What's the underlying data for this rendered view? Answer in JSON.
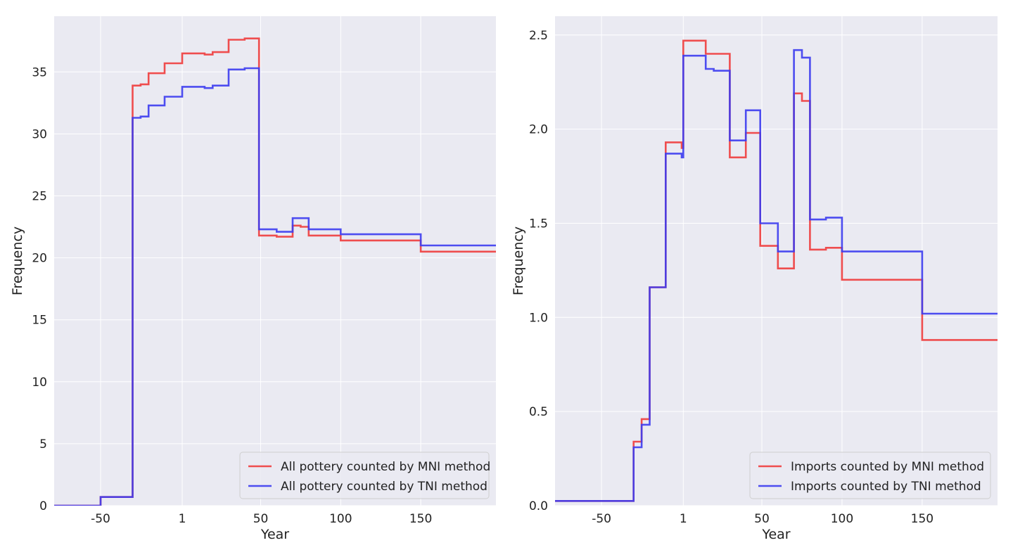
{
  "chart_data": [
    {
      "type": "line",
      "xlabel": "Year",
      "ylabel": "Frequency",
      "xlim": [
        -79,
        197
      ],
      "ylim": [
        0,
        39.5
      ],
      "xticks": [
        -50,
        1,
        50,
        100,
        150
      ],
      "xtick_labels": [
        "-50",
        "1",
        "50",
        "100",
        "150"
      ],
      "yticks": [
        0,
        5,
        10,
        15,
        20,
        25,
        30,
        35
      ],
      "yticks_labels": [
        "0",
        "5",
        "10",
        "15",
        "20",
        "25",
        "30",
        "35"
      ],
      "grid": true,
      "legend_position": "lower-right",
      "series": [
        {
          "name": "All pottery counted by MNI method",
          "color": "#f03c3c",
          "x": [
            -79,
            -50,
            -50,
            -30,
            -30,
            -25,
            -25,
            -20,
            -20,
            -10,
            -10,
            1,
            1,
            15,
            15,
            20,
            20,
            30,
            30,
            40,
            40,
            49,
            49,
            60,
            60,
            70,
            70,
            75,
            75,
            80,
            80,
            100,
            100,
            150,
            150,
            197
          ],
          "y": [
            0,
            0,
            0.7,
            0.7,
            33.9,
            33.9,
            34.0,
            34.0,
            34.9,
            34.9,
            35.7,
            35.7,
            36.5,
            36.5,
            36.4,
            36.4,
            36.6,
            36.6,
            37.6,
            37.6,
            37.7,
            37.7,
            21.8,
            21.8,
            21.7,
            21.7,
            22.6,
            22.6,
            22.5,
            22.5,
            21.8,
            21.8,
            21.4,
            21.4,
            20.5,
            20.5
          ]
        },
        {
          "name": "All pottery counted by TNI method",
          "color": "#3c3cf0",
          "x": [
            -79,
            -50,
            -50,
            -30,
            -30,
            -25,
            -25,
            -20,
            -20,
            -10,
            -10,
            1,
            1,
            15,
            15,
            20,
            20,
            30,
            30,
            40,
            40,
            49,
            49,
            60,
            60,
            70,
            70,
            80,
            80,
            100,
            100,
            150,
            150,
            197
          ],
          "y": [
            0,
            0,
            0.7,
            0.7,
            31.3,
            31.3,
            31.4,
            31.4,
            32.3,
            32.3,
            33.0,
            33.0,
            33.8,
            33.8,
            33.7,
            33.7,
            33.9,
            33.9,
            35.2,
            35.2,
            35.3,
            35.3,
            22.3,
            22.3,
            22.1,
            22.1,
            23.2,
            23.2,
            22.3,
            22.3,
            21.9,
            21.9,
            21.0,
            21.0
          ]
        }
      ]
    },
    {
      "type": "line",
      "xlabel": "Year",
      "ylabel": "Frequency",
      "xlim": [
        -79,
        197
      ],
      "ylim": [
        0,
        2.6
      ],
      "xticks": [
        -50,
        1,
        50,
        100,
        150
      ],
      "xtick_labels": [
        "-50",
        "1",
        "50",
        "100",
        "150"
      ],
      "yticks": [
        0,
        0.5,
        1.0,
        1.5,
        2.0,
        2.5
      ],
      "yticks_labels": [
        "0.0",
        "0.5",
        "1.0",
        "1.5",
        "2.0",
        "2.5"
      ],
      "grid": true,
      "legend_position": "lower-right",
      "series": [
        {
          "name": "Imports counted by MNI method",
          "color": "#f03c3c",
          "x": [
            -79,
            -30,
            -30,
            -25,
            -25,
            -20,
            -20,
            -10,
            -10,
            0,
            0,
            1,
            1,
            15,
            15,
            20,
            20,
            30,
            30,
            40,
            40,
            49,
            49,
            60,
            60,
            70,
            70,
            75,
            75,
            80,
            80,
            90,
            90,
            100,
            100,
            150,
            150,
            197
          ],
          "y": [
            0.025,
            0.025,
            0.34,
            0.34,
            0.46,
            0.46,
            1.16,
            1.16,
            1.93,
            1.93,
            1.9,
            1.9,
            2.47,
            2.47,
            2.4,
            2.4,
            2.4,
            2.4,
            1.85,
            1.85,
            1.98,
            1.98,
            1.38,
            1.38,
            1.26,
            1.26,
            2.19,
            2.19,
            2.15,
            2.15,
            1.36,
            1.36,
            1.37,
            1.37,
            1.2,
            1.2,
            0.88,
            0.88
          ]
        },
        {
          "name": "Imports counted by TNI method",
          "color": "#3c3cf0",
          "x": [
            -79,
            -30,
            -30,
            -25,
            -25,
            -20,
            -20,
            -10,
            -10,
            0,
            0,
            1,
            1,
            15,
            15,
            20,
            20,
            30,
            30,
            40,
            40,
            49,
            49,
            60,
            60,
            70,
            70,
            75,
            75,
            80,
            80,
            90,
            90,
            100,
            100,
            150,
            150,
            197
          ],
          "y": [
            0.025,
            0.025,
            0.31,
            0.31,
            0.43,
            0.43,
            1.16,
            1.16,
            1.87,
            1.87,
            1.85,
            1.85,
            2.39,
            2.39,
            2.32,
            2.32,
            2.31,
            2.31,
            1.94,
            1.94,
            2.1,
            2.1,
            1.5,
            1.5,
            1.35,
            1.35,
            2.42,
            2.42,
            2.38,
            2.38,
            1.52,
            1.52,
            1.53,
            1.53,
            1.35,
            1.35,
            1.02,
            1.02
          ]
        }
      ]
    }
  ]
}
